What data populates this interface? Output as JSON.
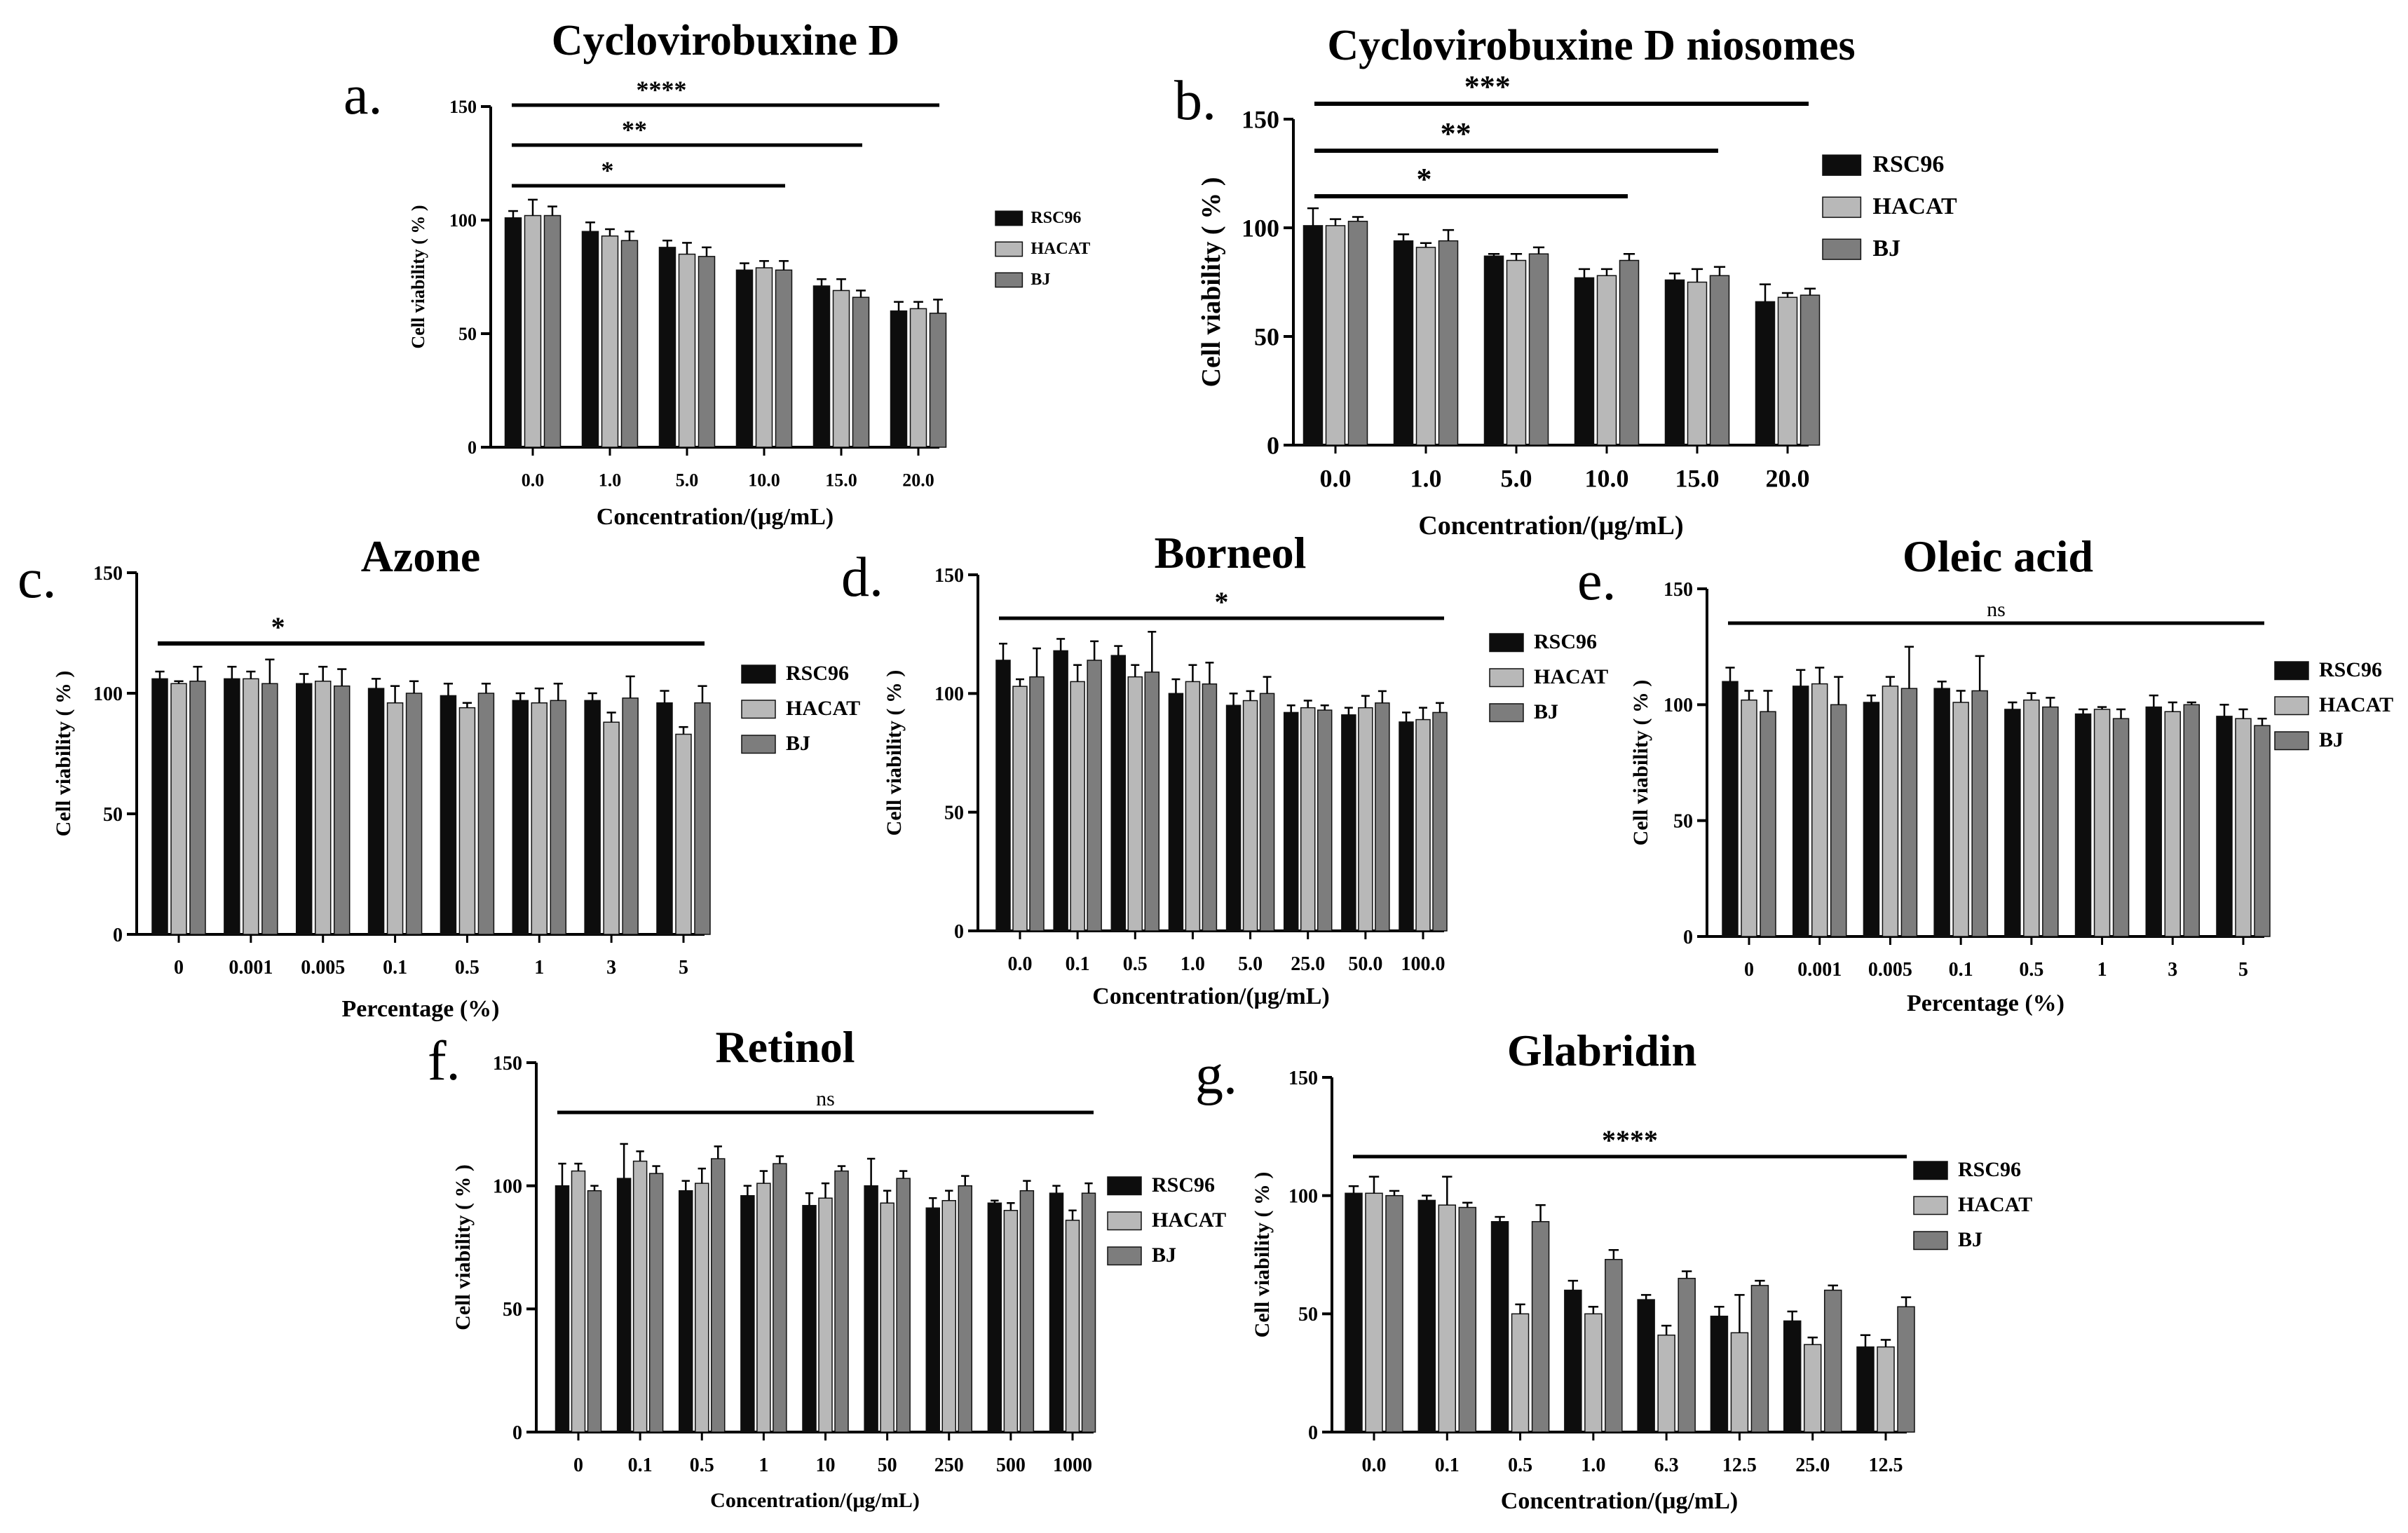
{
  "colors": {
    "rsc96": "#0d0d0d",
    "hacat": "#b8b8b8",
    "bj": "#7d7d7d",
    "axis": "#000000"
  },
  "chart_data": [
    {
      "id": "a",
      "panel_label": "a.",
      "type": "bar",
      "title": "Cyclovirobuxine D",
      "xlabel": "Concentration/(μg/mL)",
      "ylabel": "Cell viability ( % )",
      "ylim": [
        0,
        150
      ],
      "yticks": [
        "0",
        "50",
        "100",
        "150"
      ],
      "categories": [
        "0.0",
        "1.0",
        "5.0",
        "10.0",
        "15.0",
        "20.0"
      ],
      "series": [
        {
          "name": "RSC96",
          "values": [
            101,
            95,
            88,
            78,
            71,
            60
          ],
          "errors": [
            3,
            4,
            3,
            3,
            3,
            4
          ]
        },
        {
          "name": "HACAT",
          "values": [
            102,
            93,
            85,
            79,
            69,
            61
          ],
          "errors": [
            7,
            3,
            5,
            3,
            5,
            3
          ]
        },
        {
          "name": "BJ",
          "values": [
            102,
            91,
            84,
            78,
            66,
            59
          ],
          "errors": [
            4,
            4,
            4,
            4,
            3,
            6
          ]
        }
      ],
      "significance": [
        {
          "label": "*",
          "from": 0,
          "to": 3
        },
        {
          "label": "**",
          "from": 0,
          "to": 4
        },
        {
          "label": "****",
          "from": 0,
          "to": 5
        }
      ],
      "legend": [
        "RSC96",
        "HACAT",
        "BJ"
      ]
    },
    {
      "id": "b",
      "panel_label": "b.",
      "type": "bar",
      "title": "Cyclovirobuxine D niosomes",
      "xlabel": "Concentration/(μg/mL)",
      "ylabel": "Cell viability ( % )",
      "ylim": [
        0,
        150
      ],
      "yticks": [
        "0",
        "50",
        "100",
        "150"
      ],
      "categories": [
        "0.0",
        "1.0",
        "5.0",
        "10.0",
        "15.0",
        "20.0"
      ],
      "series": [
        {
          "name": "RSC96",
          "values": [
            101,
            94,
            87,
            77,
            76,
            66
          ],
          "errors": [
            8,
            3,
            1,
            4,
            3,
            8
          ]
        },
        {
          "name": "HACAT",
          "values": [
            101,
            91,
            85,
            78,
            75,
            68
          ],
          "errors": [
            3,
            2,
            3,
            3,
            6,
            2
          ]
        },
        {
          "name": "BJ",
          "values": [
            103,
            94,
            88,
            85,
            78,
            69
          ],
          "errors": [
            2,
            5,
            3,
            3,
            4,
            3
          ]
        }
      ],
      "significance": [
        {
          "label": "*",
          "from": 0,
          "to": 3
        },
        {
          "label": "**",
          "from": 0,
          "to": 4
        },
        {
          "label": "***",
          "from": 0,
          "to": 5
        }
      ],
      "legend": [
        "RSC96",
        "HACAT",
        "BJ"
      ]
    },
    {
      "id": "c",
      "panel_label": "c.",
      "type": "bar",
      "title": "Azone",
      "xlabel": "Percentage (%)",
      "ylabel": "Cell viability ( % )",
      "ylim": [
        0,
        150
      ],
      "yticks": [
        "0",
        "50",
        "100",
        "150"
      ],
      "categories": [
        "0",
        "0.001",
        "0.005",
        "0.1",
        "0.5",
        "1",
        "3",
        "5"
      ],
      "series": [
        {
          "name": "RSC96",
          "values": [
            106,
            106,
            104,
            102,
            99,
            97,
            97,
            96
          ],
          "errors": [
            3,
            5,
            4,
            4,
            5,
            3,
            3,
            5
          ]
        },
        {
          "name": "HACAT",
          "values": [
            104,
            106,
            105,
            96,
            94,
            96,
            88,
            83
          ],
          "errors": [
            1,
            3,
            6,
            7,
            2,
            6,
            4,
            3
          ]
        },
        {
          "name": "BJ",
          "values": [
            105,
            104,
            103,
            100,
            100,
            97,
            98,
            96
          ],
          "errors": [
            6,
            10,
            7,
            5,
            4,
            7,
            9,
            7
          ]
        }
      ],
      "significance": [
        {
          "label": "*",
          "from": 0,
          "to": 7
        }
      ],
      "legend": [
        "RSC96",
        "HACAT",
        "BJ"
      ]
    },
    {
      "id": "d",
      "panel_label": "d.",
      "type": "bar",
      "title": "Borneol",
      "xlabel": "Concentration/(μg/mL)",
      "ylabel": "Cell viability ( % )",
      "ylim": [
        0,
        150
      ],
      "yticks": [
        "0",
        "50",
        "100",
        "150"
      ],
      "categories": [
        "0.0",
        "0.1",
        "0.5",
        "1.0",
        "5.0",
        "25.0",
        "50.0",
        "100.0"
      ],
      "series": [
        {
          "name": "RSC96",
          "values": [
            114,
            118,
            116,
            100,
            95,
            92,
            91,
            88
          ],
          "errors": [
            7,
            5,
            4,
            6,
            5,
            3,
            3,
            4
          ]
        },
        {
          "name": "HACAT",
          "values": [
            103,
            105,
            107,
            105,
            97,
            94,
            94,
            89
          ],
          "errors": [
            3,
            7,
            5,
            7,
            4,
            3,
            5,
            5
          ]
        },
        {
          "name": "BJ",
          "values": [
            107,
            114,
            109,
            104,
            100,
            93,
            96,
            92
          ],
          "errors": [
            12,
            8,
            17,
            9,
            7,
            2,
            5,
            4
          ]
        }
      ],
      "significance": [
        {
          "label": "*",
          "from": 0,
          "to": 7
        }
      ],
      "legend": [
        "RSC96",
        "HACAT",
        "BJ"
      ]
    },
    {
      "id": "e",
      "panel_label": "e.",
      "type": "bar",
      "title": "Oleic acid",
      "xlabel": "Percentage (%)",
      "ylabel": "Cell viability ( % )",
      "ylim": [
        0,
        150
      ],
      "yticks": [
        "0",
        "50",
        "100",
        "150"
      ],
      "categories": [
        "0",
        "0.001",
        "0.005",
        "0.1",
        "0.5",
        "1",
        "3",
        "5"
      ],
      "series": [
        {
          "name": "RSC96",
          "values": [
            110,
            108,
            101,
            107,
            98,
            96,
            99,
            95
          ],
          "errors": [
            6,
            7,
            3,
            3,
            3,
            2,
            5,
            5
          ]
        },
        {
          "name": "HACAT",
          "values": [
            102,
            109,
            108,
            101,
            102,
            98,
            97,
            94
          ],
          "errors": [
            4,
            7,
            4,
            5,
            3,
            1,
            4,
            4
          ]
        },
        {
          "name": "BJ",
          "values": [
            97,
            100,
            107,
            106,
            99,
            94,
            100,
            91
          ],
          "errors": [
            9,
            12,
            18,
            15,
            4,
            4,
            1,
            3
          ]
        }
      ],
      "significance": [
        {
          "label": "ns",
          "from": 0,
          "to": 7
        }
      ],
      "legend": [
        "RSC96",
        "HACAT",
        "BJ"
      ]
    },
    {
      "id": "f",
      "panel_label": "f.",
      "type": "bar",
      "title": "Retinol",
      "xlabel": "Concentration/(μg/mL)",
      "ylabel": "Cell viability ( % )",
      "ylim": [
        0,
        150
      ],
      "yticks": [
        "0",
        "50",
        "100",
        "150"
      ],
      "categories": [
        "0",
        "0.1",
        "0.5",
        "1",
        "10",
        "50",
        "250",
        "500",
        "1000"
      ],
      "series": [
        {
          "name": "RSC96",
          "values": [
            100,
            103,
            98,
            96,
            92,
            100,
            91,
            93,
            97
          ],
          "errors": [
            9,
            14,
            4,
            4,
            5,
            11,
            4,
            1,
            3
          ]
        },
        {
          "name": "HACAT",
          "values": [
            106,
            110,
            101,
            101,
            95,
            93,
            94,
            90,
            86
          ],
          "errors": [
            3,
            4,
            6,
            5,
            6,
            5,
            4,
            3,
            4
          ]
        },
        {
          "name": "BJ",
          "values": [
            98,
            105,
            111,
            109,
            106,
            103,
            100,
            98,
            97
          ],
          "errors": [
            2,
            3,
            5,
            3,
            2,
            3,
            4,
            4,
            4
          ]
        }
      ],
      "significance": [
        {
          "label": "ns",
          "from": 0,
          "to": 8
        }
      ],
      "legend": [
        "RSC96",
        "HACAT",
        "BJ"
      ]
    },
    {
      "id": "g",
      "panel_label": "g.",
      "type": "bar",
      "title": "Glabridin",
      "xlabel": "Concentration/(μg/mL)",
      "ylabel": "Cell viability ( % )",
      "ylim": [
        0,
        150
      ],
      "yticks": [
        "0",
        "50",
        "100",
        "150"
      ],
      "categories": [
        "0.0",
        "0.1",
        "0.5",
        "1.0",
        "6.3",
        "12.5",
        "25.0",
        "12.5"
      ],
      "series": [
        {
          "name": "RSC96",
          "values": [
            101,
            98,
            89,
            60,
            56,
            49,
            47,
            36
          ],
          "errors": [
            3,
            2,
            2,
            4,
            2,
            4,
            4,
            5
          ]
        },
        {
          "name": "HACAT",
          "values": [
            101,
            96,
            50,
            50,
            41,
            42,
            37,
            36
          ],
          "errors": [
            7,
            12,
            4,
            3,
            4,
            16,
            3,
            3
          ]
        },
        {
          "name": "BJ",
          "values": [
            100,
            95,
            89,
            73,
            65,
            62,
            60,
            53
          ],
          "errors": [
            2,
            2,
            7,
            4,
            3,
            2,
            2,
            4
          ]
        }
      ],
      "significance": [
        {
          "label": "****",
          "from": 0,
          "to": 7
        }
      ],
      "legend": [
        "RSC96",
        "HACAT",
        "BJ"
      ]
    }
  ]
}
